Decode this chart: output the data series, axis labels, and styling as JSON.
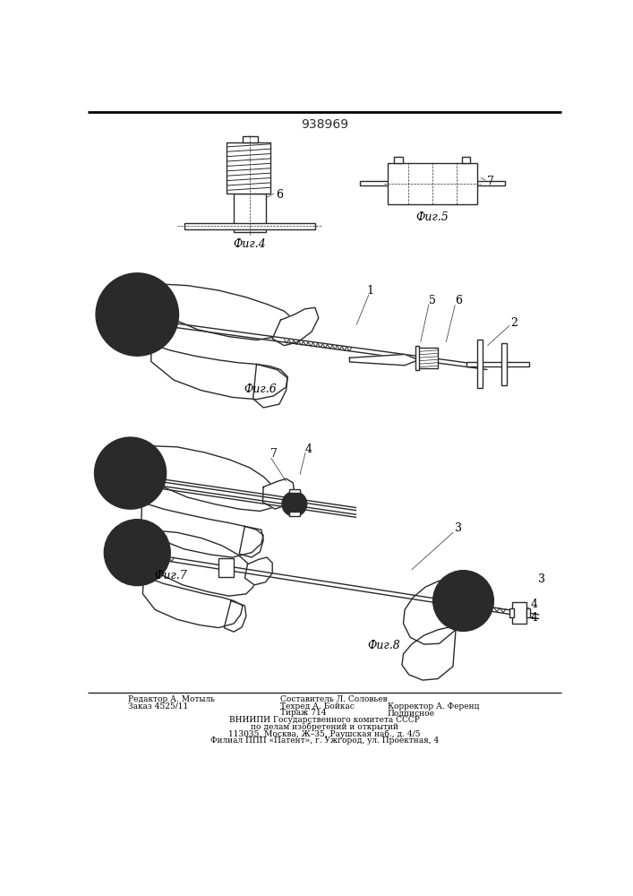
{
  "title": "938969",
  "bg_color": "#ffffff",
  "line_color": "#2a2a2a",
  "fig4_label": "Фиг.4",
  "fig5_label": "Фиг.5",
  "fig6_label": "Фиг.6",
  "fig7_label": "Фиг.7",
  "fig8_label": "Фиг.8",
  "footer_left1": "Редактор А. Мотыль",
  "footer_left2": "Заказ 4525/11",
  "footer_mid1": "Составитель Л. Соловьев",
  "footer_mid2": "Техред А. Бойкас",
  "footer_mid3": "Тираж 714",
  "footer_right2": "Корректор А. Ференц",
  "footer_right3": "Подписное",
  "footer_c1": "ВНИИПИ Государственного комитета СССР",
  "footer_c2": "по делам изобретений и открытий",
  "footer_c3": "113035, Москва, Ж–35, Раушская наб., д. 4/5",
  "footer_c4": "Филиал ППП «Патент», г. Ужгород, ул. Проектная, 4"
}
